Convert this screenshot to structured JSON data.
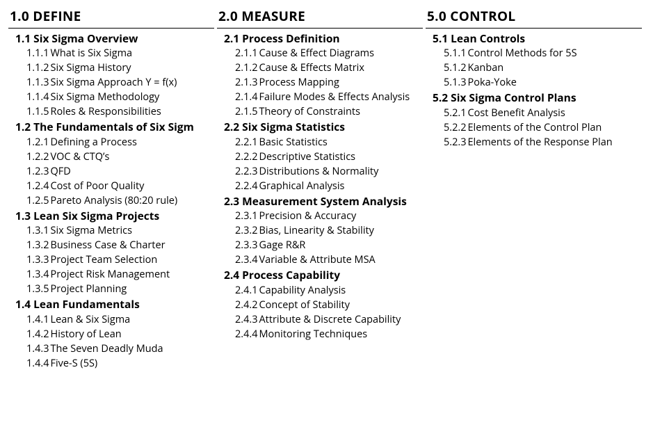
{
  "columns": [
    {
      "id": "define",
      "title": "1.0 DEFINE",
      "sections": [
        {
          "id": "1.1",
          "title": "1.1 Six Sigma Overview",
          "items": [
            {
              "num": "1.1.1",
              "label": "What is Six Sigma"
            },
            {
              "num": "1.1.2",
              "label": "Six Sigma History"
            },
            {
              "num": "1.1.3",
              "label": "Six Sigma Approach Y = f(x)"
            },
            {
              "num": "1.1.4",
              "label": "Six Sigma Methodology"
            },
            {
              "num": "1.1.5",
              "label": "Roles & Responsibilities"
            }
          ]
        },
        {
          "id": "1.2",
          "title": "1.2 The Fundamentals of Six Sigm",
          "items": [
            {
              "num": "1.2.1",
              "label": "Defining a Process"
            },
            {
              "num": "1.2.2",
              "label": "VOC & CTQ’s"
            },
            {
              "num": "1.2.3",
              "label": "QFD"
            },
            {
              "num": "1.2.4",
              "label": "Cost of Poor Quality"
            },
            {
              "num": "1.2.5",
              "label": "Pareto Analysis (80:20 rule)"
            }
          ]
        },
        {
          "id": "1.3",
          "title": "1.3 Lean Six Sigma Projects",
          "items": [
            {
              "num": "1.3.1",
              "label": "Six Sigma Metrics"
            },
            {
              "num": "1.3.2",
              "label": "Business Case & Charter"
            },
            {
              "num": "1.3.3",
              "label": "Project Team Selection"
            },
            {
              "num": "1.3.4",
              "label": "Project Risk Management"
            },
            {
              "num": "1.3.5",
              "label": "Project Planning"
            }
          ]
        },
        {
          "id": "1.4",
          "title": "1.4 Lean Fundamentals",
          "items": [
            {
              "num": "1.4.1",
              "label": "Lean & Six Sigma"
            },
            {
              "num": "1.4.2",
              "label": "History of Lean"
            },
            {
              "num": "1.4.3",
              "label": "The Seven Deadly Muda"
            },
            {
              "num": "1.4.4",
              "label": "Five-S (5S)"
            }
          ]
        }
      ]
    },
    {
      "id": "measure",
      "title": "2.0 MEASURE",
      "sections": [
        {
          "id": "2.1",
          "title": "2.1 Process Definition",
          "items": [
            {
              "num": "2.1.1",
              "label": "Cause & Effect Diagrams"
            },
            {
              "num": "2.1.2",
              "label": "Cause & Effects Matrix"
            },
            {
              "num": "2.1.3",
              "label": "Process Mapping"
            },
            {
              "num": "2.1.4",
              "label": "Failure Modes & Effects Analysis"
            },
            {
              "num": "2.1.5",
              "label": "Theory of Constraints"
            }
          ]
        },
        {
          "id": "2.2",
          "title": "2.2 Six Sigma Statistics",
          "items": [
            {
              "num": "2.2.1",
              "label": "Basic Statistics"
            },
            {
              "num": "2.2.2",
              "label": "Descriptive Statistics"
            },
            {
              "num": "2.2.3",
              "label": "Distributions & Normality"
            },
            {
              "num": "2.2.4",
              "label": "Graphical Analysis"
            }
          ]
        },
        {
          "id": "2.3",
          "title": "2.3 Measurement System Analysis",
          "items": [
            {
              "num": "2.3.1",
              "label": "Precision & Accuracy"
            },
            {
              "num": "2.3.2",
              "label": "Bias, Linearity & Stability"
            },
            {
              "num": "2.3.3",
              "label": "Gage R&R"
            },
            {
              "num": "2.3.4",
              "label": "Variable & Attribute MSA"
            }
          ]
        },
        {
          "id": "2.4",
          "title": "2.4 Process Capability",
          "items": [
            {
              "num": "2.4.1",
              "label": "Capability Analysis"
            },
            {
              "num": "2.4.2",
              "label": "Concept of Stability"
            },
            {
              "num": "2.4.3",
              "label": "Attribute & Discrete Capability"
            },
            {
              "num": "2.4.4",
              "label": "Monitoring Techniques"
            }
          ]
        }
      ]
    },
    {
      "id": "control",
      "title": "5.0 CONTROL",
      "sections": [
        {
          "id": "5.1",
          "title": "5.1 Lean Controls",
          "items": [
            {
              "num": "5.1.1",
              "label": "Control Methods for 5S"
            },
            {
              "num": "5.1.2",
              "label": "Kanban"
            },
            {
              "num": "5.1.3",
              "label": "Poka-Yoke"
            }
          ]
        },
        {
          "id": "5.2",
          "title": "5.2 Six Sigma Control Plans",
          "items": [
            {
              "num": "5.2.1",
              "label": "Cost Benefit Analysis"
            },
            {
              "num": "5.2.2",
              "label": "Elements of the Control Plan"
            },
            {
              "num": "5.2.3",
              "label": "Elements of the Response Plan"
            }
          ]
        }
      ]
    }
  ]
}
